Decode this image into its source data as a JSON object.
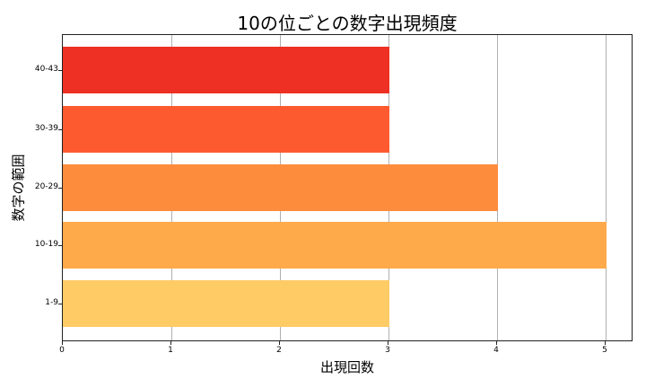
{
  "chart_data": {
    "type": "bar",
    "orientation": "horizontal",
    "title": "10の位ごとの数字出現頻度",
    "xlabel": "出現回数",
    "ylabel": "数字の範囲",
    "categories": [
      "40-43",
      "30-39",
      "20-29",
      "10-19",
      "1-9"
    ],
    "values": [
      3,
      3,
      4,
      5,
      3
    ],
    "colors": [
      "#ee3024",
      "#fd5a30",
      "#fe8c3d",
      "#feaa4a",
      "#fecb65"
    ],
    "xlim": [
      0,
      5.25
    ],
    "xticks": [
      "0",
      "1",
      "2",
      "3",
      "4",
      "5"
    ],
    "grid": "x",
    "legend": null
  }
}
